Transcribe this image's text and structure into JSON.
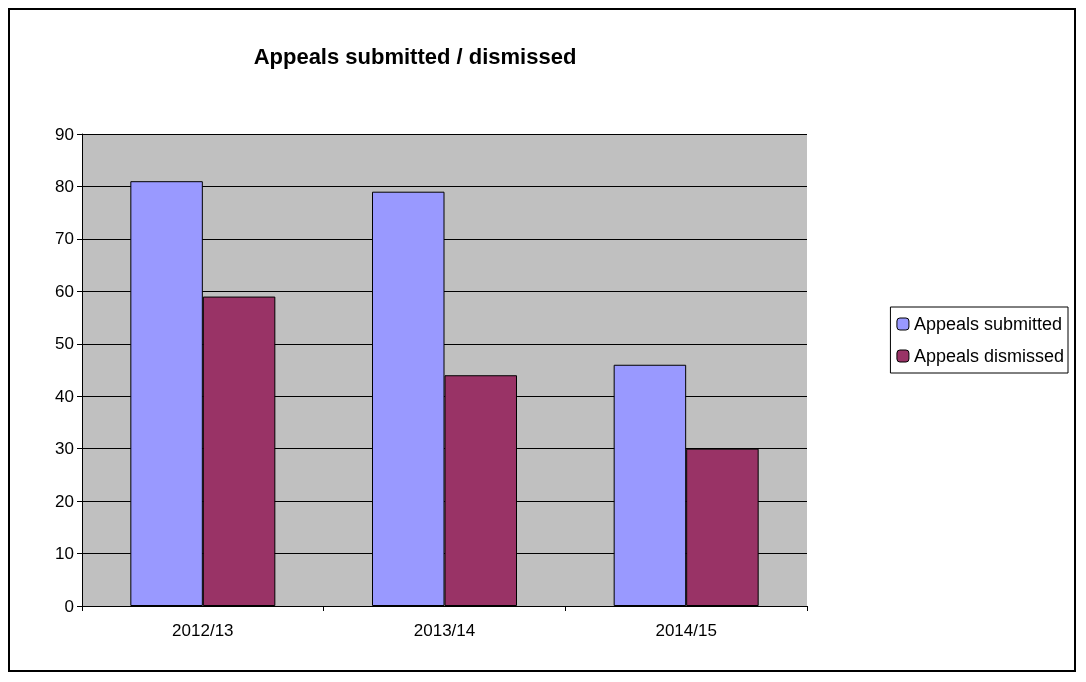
{
  "chart_data": {
    "type": "bar",
    "title": "Appeals submitted / dismissed",
    "categories": [
      "2012/13",
      "2013/14",
      "2014/15"
    ],
    "series": [
      {
        "name": "Appeals submitted",
        "color": "#9999ff",
        "values": [
          81,
          79,
          46
        ]
      },
      {
        "name": "Appeals dismissed",
        "color": "#993366",
        "values": [
          59,
          44,
          30
        ]
      }
    ],
    "ylim": [
      0,
      90
    ],
    "yticks": [
      0,
      10,
      20,
      30,
      40,
      50,
      60,
      70,
      80,
      90
    ],
    "grid": "y",
    "legend": "right"
  }
}
